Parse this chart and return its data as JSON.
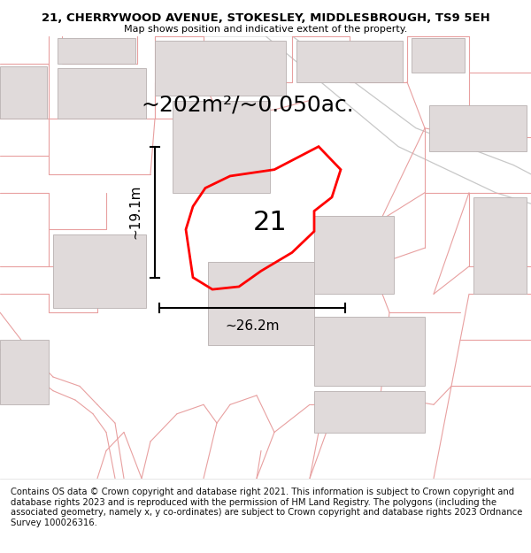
{
  "title_line1": "21, CHERRYWOOD AVENUE, STOKESLEY, MIDDLESBROUGH, TS9 5EH",
  "title_line2": "Map shows position and indicative extent of the property.",
  "area_label": "~202m²/~0.050ac.",
  "width_label": "~26.2m",
  "height_label": "~19.1m",
  "plot_number": "21",
  "footer_text": "Contains OS data © Crown copyright and database right 2021. This information is subject to Crown copyright and database rights 2023 and is reproduced with the permission of HM Land Registry. The polygons (including the associated geometry, namely x, y co-ordinates) are subject to Crown copyright and database rights 2023 Ordnance Survey 100026316.",
  "map_bg": "#ffffff",
  "road_color": "#e8a0a0",
  "road_color2": "#c8c8c8",
  "building_color": "#e0dada",
  "building_edge": "#b8b0b0",
  "plot_color": "#ff0000",
  "title_fontsize": 9.5,
  "subtitle_fontsize": 8.0,
  "area_fontsize": 18,
  "dim_fontsize": 11,
  "number_fontsize": 22,
  "footer_fontsize": 7.2
}
